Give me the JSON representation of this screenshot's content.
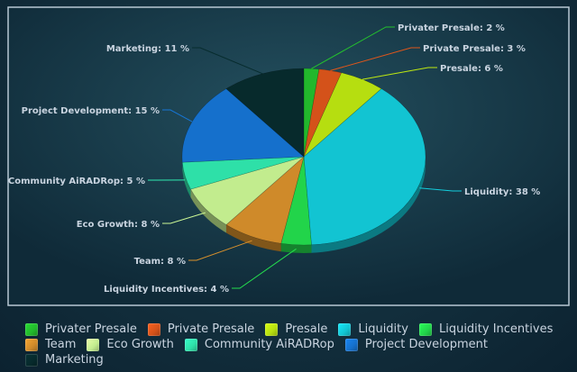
{
  "chart_data": {
    "type": "pie",
    "title": "",
    "categories": [
      "Privater Presale",
      "Private Presale",
      "Presale",
      "Liquidity",
      "Liquidity Incentives",
      "Team",
      "Eco Growth",
      "Community AiRADRop",
      "Project Development",
      "Marketing"
    ],
    "values": [
      2,
      3,
      6,
      38,
      4,
      8,
      8,
      5,
      15,
      11
    ],
    "slice_labels": [
      "Privater Presale: 2 %",
      "Private Presale: 3 %",
      "Presale: 6 %",
      "Liquidity: 38 %",
      "Liquidity Incentives: 4 %",
      "Team: 8 %",
      "Eco Growth: 8 %",
      "Community AiRADRop: 5 %",
      "Project Development: 15 %",
      "Marketing: 11 %"
    ],
    "colors": [
      "#22b82c",
      "#d4521a",
      "#b6de10",
      "#12c4d2",
      "#22d44a",
      "#cf8a2a",
      "#c2ec8e",
      "#2ee0a8",
      "#1570cc",
      "#072a2c"
    ],
    "legend_position": "bottom",
    "style": "3d-pie"
  },
  "colors": {
    "background": "#143240",
    "label_text": "#c9d4e0",
    "frame": "#b8c8d4"
  }
}
